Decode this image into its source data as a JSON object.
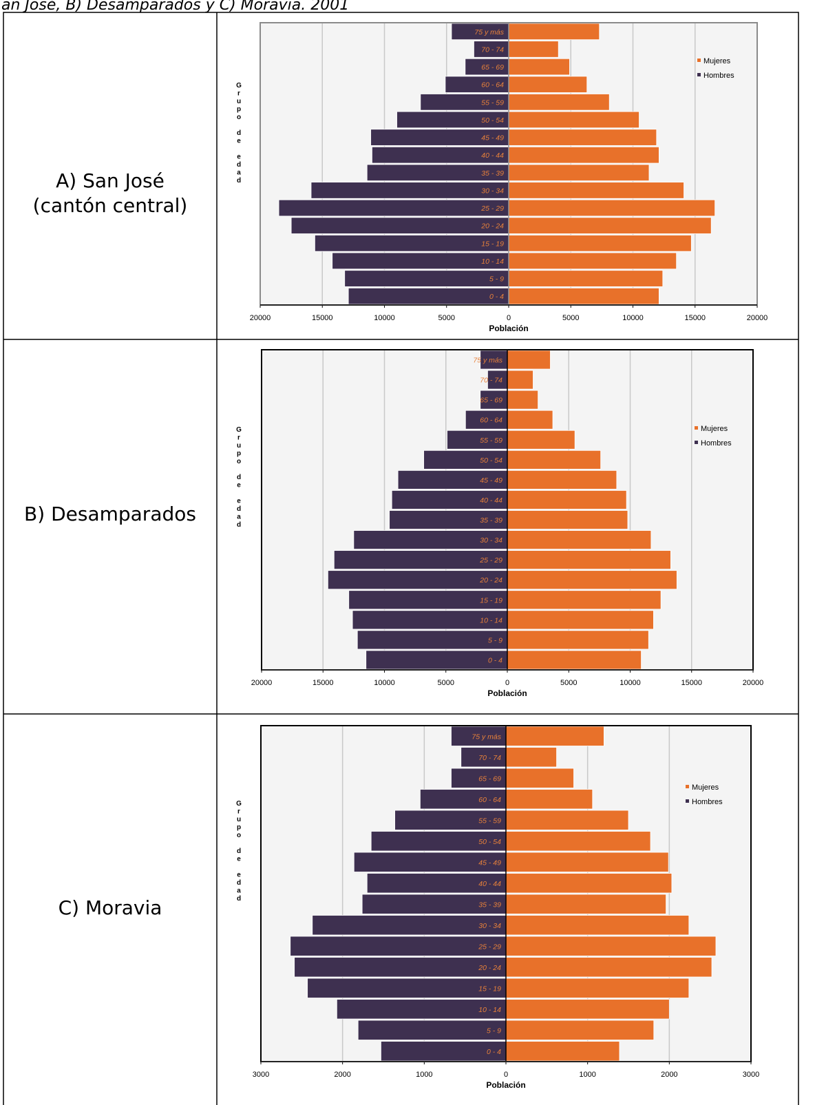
{
  "caption": "an José, B) Desamparados y C) Moravia. 2001",
  "row_labels": [
    [
      "A) San José",
      "(cantón central)"
    ],
    [
      "B) Desamparados"
    ],
    [
      "C) Moravia"
    ]
  ],
  "chart_data": [
    {
      "type": "bar",
      "x_label": "Población",
      "y_label": "Grupo de edad",
      "categories": [
        "75 y más",
        "70 - 74",
        "65 - 69",
        "60 - 64",
        "55 - 59",
        "50 - 54",
        "45 - 49",
        "40 - 44",
        "35 - 39",
        "30 - 34",
        "25 - 29",
        "20 - 24",
        "15 - 19",
        "10 - 14",
        "5 - 9",
        "0 - 4"
      ],
      "series": [
        {
          "name": "Mujeres",
          "color": "#e8712a",
          "side": "right",
          "values": [
            7300,
            4000,
            4900,
            6300,
            8100,
            10500,
            11900,
            12100,
            11300,
            14100,
            16600,
            16300,
            14700,
            13500,
            12400,
            12100
          ]
        },
        {
          "name": "Hombres",
          "color": "#3e3050",
          "side": "left",
          "values": [
            4600,
            2800,
            3500,
            5100,
            7100,
            9000,
            11100,
            11000,
            11400,
            15900,
            18500,
            17500,
            15600,
            14200,
            13200,
            12900
          ]
        }
      ],
      "xlim": [
        -20000,
        20000
      ],
      "xticks": [
        {
          "value": -20000,
          "label": "20000"
        },
        {
          "value": -15000,
          "label": "15000"
        },
        {
          "value": -10000,
          "label": "10000"
        },
        {
          "value": -5000,
          "label": "5000"
        },
        0,
        5000,
        10000,
        15000,
        20000
      ],
      "grid": true,
      "frame_color": "#8a8a8a",
      "background": "#f4f4f4",
      "legend": "upper right"
    },
    {
      "type": "bar",
      "x_label": "Población",
      "y_label": "Grupo de edad",
      "categories": [
        "75 y más",
        "70 - 74",
        "65 - 69",
        "60 - 64",
        "55 - 59",
        "50 - 54",
        "45 - 49",
        "40 - 44",
        "35 - 39",
        "30 - 34",
        "25 - 29",
        "20 - 24",
        "15 - 19",
        "10 - 14",
        "5 - 9",
        "0 - 4"
      ],
      "series": [
        {
          "name": "Mujeres",
          "color": "#e8712a",
          "side": "right",
          "values": [
            3500,
            2100,
            2500,
            3700,
            5500,
            7600,
            8900,
            9700,
            9800,
            11700,
            13300,
            13800,
            12500,
            11900,
            11500,
            10900
          ]
        },
        {
          "name": "Hombres",
          "color": "#3e3050",
          "side": "left",
          "values": [
            2200,
            1600,
            2200,
            3400,
            4900,
            6800,
            8900,
            9400,
            9600,
            12500,
            14100,
            14600,
            12900,
            12600,
            12200,
            11500
          ]
        }
      ],
      "xlim": [
        -20000,
        20000
      ],
      "xticks": [
        {
          "value": -20000,
          "label": "20000"
        },
        {
          "value": -15000,
          "label": "15000"
        },
        {
          "value": -10000,
          "label": "10000"
        },
        {
          "value": -5000,
          "label": "5000"
        },
        0,
        5000,
        10000,
        15000,
        20000
      ],
      "grid": true,
      "frame_color": "#000000",
      "background": "#f4f4f4",
      "legend": "upper right"
    },
    {
      "type": "bar",
      "x_label": "Población",
      "y_label": "Grupo de edad",
      "categories": [
        "75 y más",
        "70 - 74",
        "65 - 69",
        "60 - 64",
        "55 - 59",
        "50 - 54",
        "45 - 49",
        "40 - 44",
        "35 - 39",
        "30 - 34",
        "25 - 29",
        "20 - 24",
        "15 - 19",
        "10 - 14",
        "5 - 9",
        "0 - 4"
      ],
      "series": [
        {
          "name": "Mujeres",
          "color": "#e8712a",
          "side": "right",
          "values": [
            1200,
            620,
            830,
            1060,
            1500,
            1770,
            1990,
            2030,
            1960,
            2240,
            2570,
            2520,
            2240,
            2000,
            1810,
            1390
          ]
        },
        {
          "name": "Hombres",
          "color": "#3e3050",
          "side": "left",
          "values": [
            670,
            550,
            670,
            1050,
            1360,
            1650,
            1860,
            1700,
            1760,
            2370,
            2640,
            2590,
            2430,
            2070,
            1810,
            1530
          ]
        }
      ],
      "xlim": [
        -3000,
        3000
      ],
      "xticks": [
        {
          "value": -3000,
          "label": "3000"
        },
        {
          "value": -2000,
          "label": "2000"
        },
        {
          "value": -1000,
          "label": "1000"
        },
        0,
        1000,
        2000,
        3000
      ],
      "grid": true,
      "frame_color": "#000000",
      "background": "#f4f4f4",
      "legend": "upper right"
    }
  ]
}
